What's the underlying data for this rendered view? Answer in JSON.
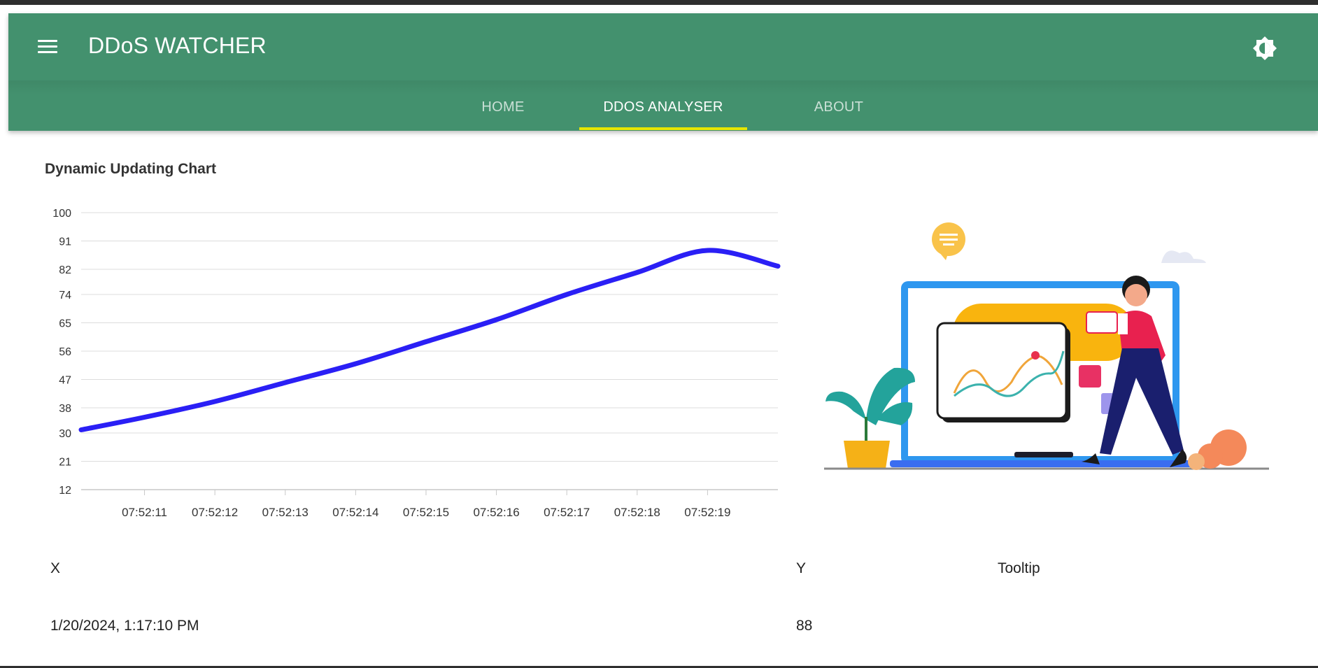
{
  "app": {
    "title": "DDoS WATCHER",
    "accent_color": "#43916e",
    "indicator_color": "#e6e600"
  },
  "toolbar": {
    "menu_icon": "hamburger-menu-icon",
    "theme_icon": "brightness-icon"
  },
  "tabs": [
    {
      "label": "HOME",
      "active": false
    },
    {
      "label": "DDOS ANALYSER",
      "active": true
    },
    {
      "label": "ABOUT",
      "active": false
    }
  ],
  "chart_section": {
    "title": "Dynamic Updating Chart"
  },
  "chart_data": {
    "type": "line",
    "title": "Dynamic Updating Chart",
    "line_color": "#2a1ff5",
    "y_ticks": [
      "100",
      "91",
      "82",
      "74",
      "65",
      "56",
      "47",
      "38",
      "30",
      "21",
      "12"
    ],
    "x_ticks": [
      "07:52:11",
      "07:52:12",
      "07:52:13",
      "07:52:14",
      "07:52:15",
      "07:52:16",
      "07:52:17",
      "07:52:18",
      "07:52:19"
    ],
    "ylim": [
      12,
      100
    ],
    "xlim": [
      "07:52:10.1",
      "07:52:20"
    ],
    "grid": true,
    "series": [
      {
        "x": [
          "07:52:10.1",
          "07:52:11",
          "07:52:12",
          "07:52:13",
          "07:52:14",
          "07:52:15",
          "07:52:16",
          "07:52:17",
          "07:52:18",
          "07:52:19",
          "07:52:20"
        ],
        "y": [
          31,
          35,
          40,
          46,
          52,
          59,
          66,
          74,
          81,
          88,
          83
        ]
      }
    ]
  },
  "table": {
    "headers": [
      "X",
      "Y",
      "Tooltip"
    ],
    "rows": [
      {
        "x": "1/20/2024, 1:17:10 PM",
        "y": "88",
        "tooltip": ""
      }
    ]
  }
}
